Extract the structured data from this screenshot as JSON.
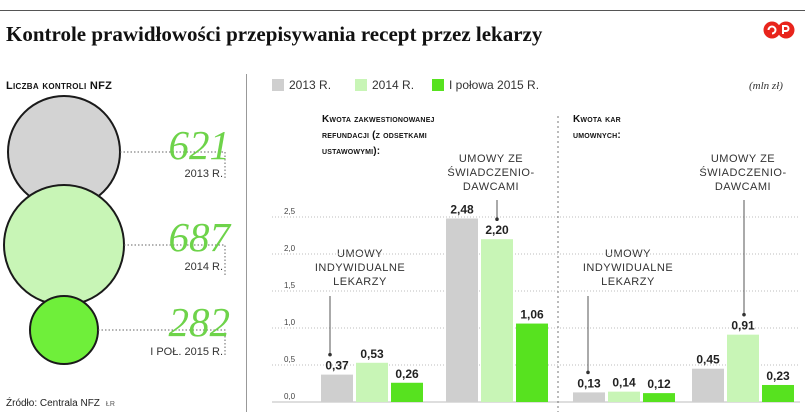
{
  "title": "Kontrole prawidłowości przepisywania recept przez lekarzy",
  "counts": {
    "title": "Liczba kontroli NFZ",
    "items": [
      {
        "value": "621",
        "label": "2013 R.",
        "color": "#d3d3d3"
      },
      {
        "value": "687",
        "label": "2014 R.",
        "color": "#c8f5b6"
      },
      {
        "value": "282",
        "label": "I POŁ. 2015 R.",
        "color": "#6fef3a"
      }
    ]
  },
  "legend": [
    {
      "label": "2013 R.",
      "color": "#cfcfcf"
    },
    {
      "label": "2014 R.",
      "color": "#c8f5b6"
    },
    {
      "label": "I połowa 2015 R.",
      "color": "#57e21f"
    }
  ],
  "unit": "(mln zł)",
  "section_titles": {
    "refund": [
      "Kwota zakwestionowanej",
      "refundacji (z odsetkami",
      "ustawowymi):"
    ],
    "penalties": [
      "Kwota kar",
      "umownych:"
    ]
  },
  "group_labels": {
    "individual": [
      "UMOWY",
      "INDYWIDUALNE",
      "LEKARZY"
    ],
    "providers": [
      "UMOWY ZE",
      "ŚWIADCZENIO-",
      "DAWCAMI"
    ]
  },
  "source": "Źródło: Centrala NFZ",
  "author_initials": "ŁR",
  "chart_data": {
    "type": "bar",
    "ylim": [
      0,
      2.5
    ],
    "yticks": [
      "0,0",
      "0,5",
      "1,0",
      "1,5",
      "2,0",
      "2,5"
    ],
    "series_names": [
      "2013 R.",
      "2014 R.",
      "I połowa 2015 R."
    ],
    "colors": [
      "#cfcfcf",
      "#c8f5b6",
      "#57e21f"
    ],
    "groups": [
      {
        "section": "Kwota zakwestionowanej refundacji (z odsetkami ustawowymi)",
        "category": "UMOWY INDYWIDUALNE LEKARZY",
        "values": [
          0.37,
          0.53,
          0.26
        ],
        "labels": [
          "0,37",
          "0,53",
          "0,26"
        ]
      },
      {
        "section": "Kwota zakwestionowanej refundacji (z odsetkami ustawowymi)",
        "category": "UMOWY ZE ŚWIADCZENIODAWCAMI",
        "values": [
          2.48,
          2.2,
          1.06
        ],
        "labels": [
          "2,48",
          "2,20",
          "1,06"
        ]
      },
      {
        "section": "Kwota kar umownych",
        "category": "UMOWY INDYWIDUALNE LEKARZY",
        "values": [
          0.13,
          0.14,
          0.12
        ],
        "labels": [
          "0,13",
          "0,14",
          "0,12"
        ]
      },
      {
        "section": "Kwota kar umownych",
        "category": "UMOWY ZE ŚWIADCZENIODAWCAMI",
        "values": [
          0.45,
          0.91,
          0.23
        ],
        "labels": [
          "0,45",
          "0,91",
          "0,23"
        ]
      }
    ]
  }
}
